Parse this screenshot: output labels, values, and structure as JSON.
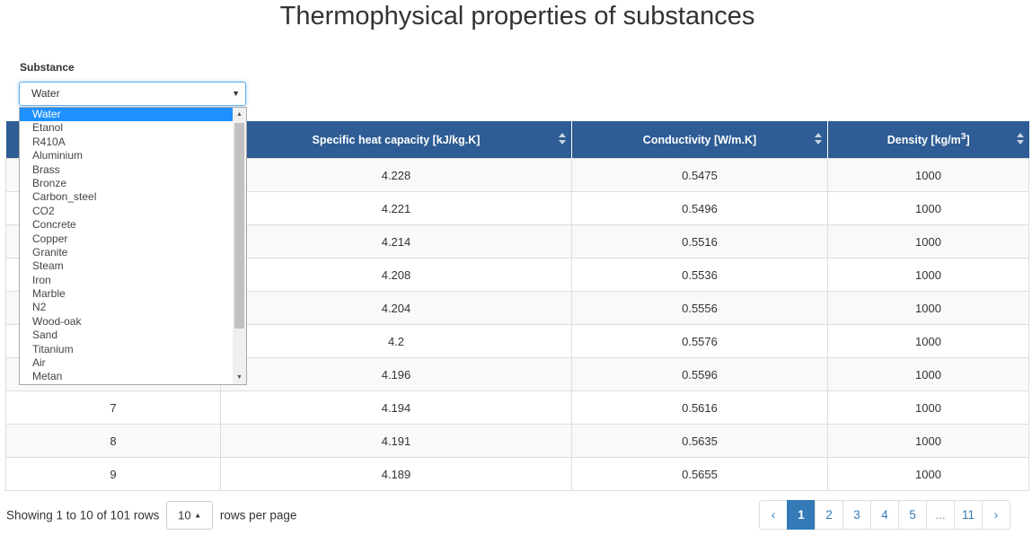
{
  "page": {
    "title": "Thermophysical properties of substances"
  },
  "substance": {
    "label": "Substance",
    "selected": "Water",
    "options": [
      "Water",
      "Etanol",
      "R410A",
      "Aluminium",
      "Brass",
      "Bronze",
      "Carbon_steel",
      "CO2",
      "Concrete",
      "Copper",
      "Granite",
      "Steam",
      "Iron",
      "Marble",
      "N2",
      "Wood-oak",
      "Sand",
      "Titanium",
      "Air",
      "Metan"
    ]
  },
  "table": {
    "columns": [
      "",
      "Specific heat capacity [kJ/kg.K]",
      "Conductivity [W/m.K]",
      "Density [kg/m3]"
    ],
    "rows": [
      [
        "",
        "4.228",
        "0.5475",
        "1000"
      ],
      [
        "",
        "4.221",
        "0.5496",
        "1000"
      ],
      [
        "",
        "4.214",
        "0.5516",
        "1000"
      ],
      [
        "",
        "4.208",
        "0.5536",
        "1000"
      ],
      [
        "",
        "4.204",
        "0.5556",
        "1000"
      ],
      [
        "",
        "4.2",
        "0.5576",
        "1000"
      ],
      [
        "",
        "4.196",
        "0.5596",
        "1000"
      ],
      [
        "7",
        "4.194",
        "0.5616",
        "1000"
      ],
      [
        "8",
        "4.191",
        "0.5635",
        "1000"
      ],
      [
        "9",
        "4.189",
        "0.5655",
        "1000"
      ]
    ]
  },
  "footer": {
    "showing": "Showing 1 to 10 of 101 rows",
    "page_size": "10",
    "rows_per_page": "rows per page"
  },
  "pagination": {
    "prev": "‹",
    "pages": [
      "1",
      "2",
      "3",
      "4",
      "5",
      "...",
      "11"
    ],
    "active": "1",
    "next": "›"
  },
  "colors": {
    "header_bg": "#2e5c94",
    "accent": "#337ab7"
  }
}
